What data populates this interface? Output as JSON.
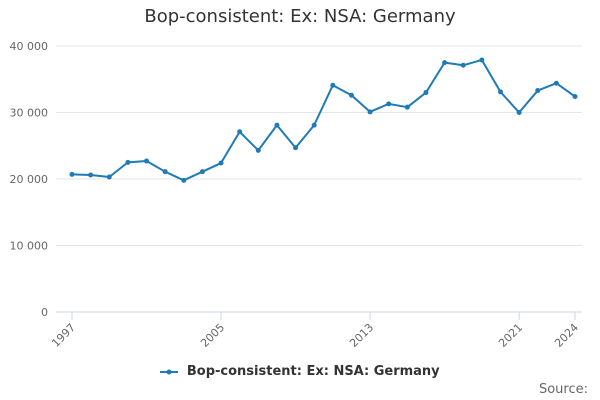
{
  "chart_data": {
    "type": "line",
    "title": "Bop-consistent: Ex: NSA: Germany",
    "xlabel": "",
    "ylabel": "",
    "x": [
      1997,
      1998,
      1999,
      2000,
      2001,
      2002,
      2003,
      2004,
      2005,
      2006,
      2007,
      2008,
      2009,
      2010,
      2011,
      2012,
      2013,
      2014,
      2015,
      2016,
      2017,
      2018,
      2019,
      2020,
      2021,
      2022,
      2023,
      2024
    ],
    "x_tick_labels": [
      "1997",
      "2005",
      "2013",
      "2021",
      "2024"
    ],
    "y_tick_labels": [
      "0",
      "10 000",
      "20 000",
      "30 000",
      "40 000"
    ],
    "xlim": [
      1997,
      2024
    ],
    "ylim": [
      0,
      40000
    ],
    "grid": true,
    "legend_position": "bottom",
    "series": [
      {
        "name": "Bop-consistent: Ex: NSA: Germany",
        "color": "#1f7bb6",
        "values": [
          20700,
          20600,
          20300,
          22500,
          22700,
          21100,
          19800,
          21100,
          22400,
          27100,
          24300,
          28100,
          24700,
          28100,
          34100,
          32600,
          30100,
          31300,
          30800,
          33000,
          37500,
          37100,
          37900,
          33100,
          30000,
          33300,
          34400,
          32400
        ]
      }
    ],
    "source_label": "Source:"
  }
}
